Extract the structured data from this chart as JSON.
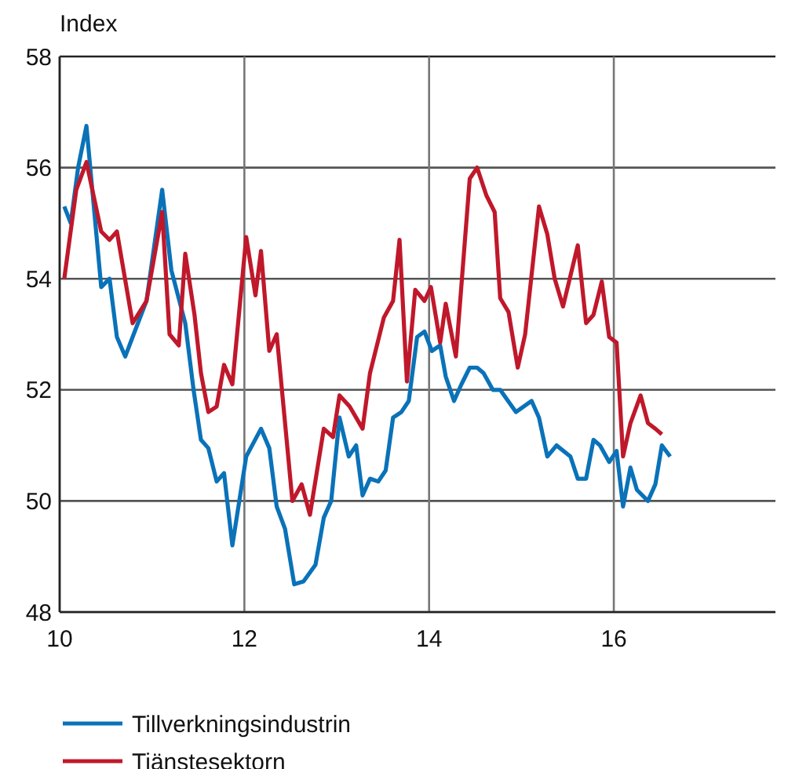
{
  "chart_data": {
    "type": "line",
    "ylabel": "Index",
    "xlim": [
      10,
      17.75
    ],
    "xticks": [
      10,
      12,
      14,
      16
    ],
    "ylim": [
      48,
      58
    ],
    "yticks": [
      48,
      50,
      52,
      54,
      56,
      58
    ],
    "grid": true,
    "legend": "bottom",
    "line_style": "solid",
    "marker": "none",
    "series": [
      {
        "name": "Tillverkningsindustrin",
        "color": "#0a72b8",
        "x": [
          10.05,
          10.12,
          10.2,
          10.29,
          10.37,
          10.45,
          10.54,
          10.62,
          10.71,
          10.79,
          10.94,
          11.11,
          11.21,
          11.36,
          11.45,
          11.53,
          11.61,
          11.7,
          11.78,
          11.87,
          12.02,
          12.18,
          12.27,
          12.35,
          12.44,
          12.54,
          12.64,
          12.77,
          12.86,
          12.94,
          13.03,
          13.13,
          13.21,
          13.28,
          13.36,
          13.45,
          13.53,
          13.61,
          13.7,
          13.78,
          13.87,
          13.95,
          14.03,
          14.12,
          14.18,
          14.27,
          14.35,
          14.44,
          14.52,
          14.59,
          14.69,
          14.77,
          14.94,
          15.11,
          15.19,
          15.28,
          15.38,
          15.53,
          15.61,
          15.7,
          15.78,
          15.85,
          15.95,
          16.03,
          16.1,
          16.18,
          16.25,
          16.37,
          16.45,
          16.52,
          16.61
        ],
        "values": [
          55.3,
          55.0,
          56.0,
          56.75,
          55.3,
          53.85,
          54.0,
          52.95,
          52.6,
          52.95,
          53.6,
          55.6,
          54.15,
          53.2,
          52.0,
          51.1,
          50.95,
          50.35,
          50.5,
          49.2,
          50.8,
          51.3,
          50.95,
          49.9,
          49.5,
          48.5,
          48.55,
          48.85,
          49.7,
          50.0,
          51.5,
          50.8,
          51.0,
          50.1,
          50.4,
          50.35,
          50.55,
          51.5,
          51.6,
          51.8,
          52.95,
          53.05,
          52.7,
          52.8,
          52.24,
          51.8,
          52.1,
          52.4,
          52.4,
          52.3,
          52.0,
          52.0,
          51.6,
          51.8,
          51.5,
          50.8,
          51.0,
          50.8,
          50.4,
          50.4,
          51.1,
          51.0,
          50.7,
          50.9,
          49.9,
          50.6,
          50.2,
          50.0,
          50.3,
          51.0,
          50.8
        ]
      },
      {
        "name": "Tiänstesektorn",
        "color": "#c0182b",
        "x": [
          10.05,
          10.18,
          10.29,
          10.45,
          10.54,
          10.62,
          10.79,
          10.94,
          11.11,
          11.19,
          11.29,
          11.36,
          11.46,
          11.53,
          11.61,
          11.7,
          11.78,
          11.87,
          12.02,
          12.12,
          12.18,
          12.27,
          12.35,
          12.52,
          12.62,
          12.71,
          12.86,
          12.96,
          13.03,
          13.14,
          13.28,
          13.36,
          13.51,
          13.61,
          13.68,
          13.76,
          13.85,
          13.95,
          14.02,
          14.12,
          14.18,
          14.29,
          14.44,
          14.52,
          14.62,
          14.71,
          14.77,
          14.86,
          14.96,
          15.04,
          15.19,
          15.28,
          15.36,
          15.45,
          15.61,
          15.7,
          15.78,
          15.87,
          15.95,
          16.03,
          16.1,
          16.18,
          16.29,
          16.37,
          16.45,
          16.52
        ],
        "values": [
          54.0,
          55.6,
          56.1,
          54.85,
          54.7,
          54.85,
          53.2,
          53.6,
          55.2,
          53.0,
          52.8,
          54.45,
          53.35,
          52.3,
          51.6,
          51.7,
          52.45,
          52.1,
          54.75,
          53.7,
          54.5,
          52.7,
          53.0,
          50.0,
          50.3,
          49.75,
          51.3,
          51.15,
          51.9,
          51.7,
          51.3,
          52.3,
          53.3,
          53.6,
          54.7,
          52.15,
          53.8,
          53.6,
          53.85,
          52.85,
          53.55,
          52.6,
          55.8,
          56.0,
          55.5,
          55.2,
          53.65,
          53.4,
          52.4,
          53.0,
          55.3,
          54.8,
          54.0,
          53.5,
          54.6,
          53.2,
          53.35,
          53.95,
          52.95,
          52.85,
          50.8,
          51.4,
          51.9,
          51.4,
          51.3,
          51.2
        ]
      }
    ]
  }
}
